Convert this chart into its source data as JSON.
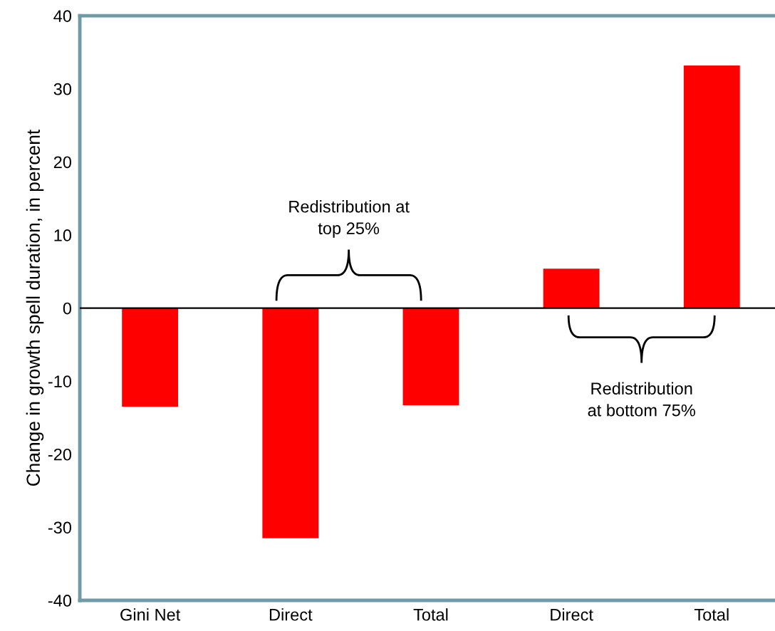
{
  "chart_data": {
    "type": "bar",
    "ylabel": "Change in growth spell duration, in percent",
    "categories": [
      "Gini Net",
      "Direct",
      "Total",
      "Direct",
      "Total"
    ],
    "values": [
      -13.5,
      -31.5,
      -13.3,
      5.4,
      33.2
    ],
    "color": "#ff0000",
    "ylim": [
      -40,
      40
    ],
    "yticks": [
      -40,
      -30,
      -20,
      -10,
      0,
      10,
      20,
      30,
      40
    ],
    "grid": false,
    "ref_lines": [
      {
        "axis": "y",
        "value": 0,
        "color": "#000000"
      }
    ],
    "annotations": [
      "Redistribution at\ntop 25%",
      "Redistribution\nat bottom 75%"
    ]
  }
}
